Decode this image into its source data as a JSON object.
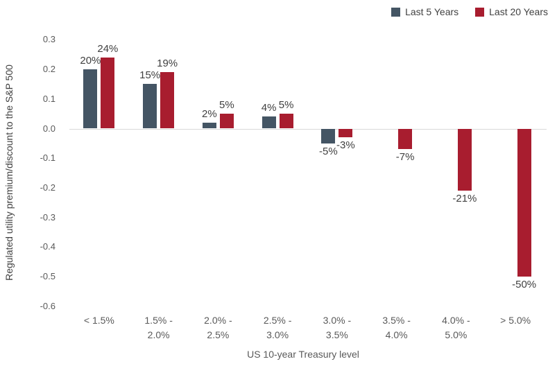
{
  "chart_data": {
    "type": "bar",
    "xlabel": "US 10-year Treasury level",
    "ylabel": "Regulated utility premium/discount to the S&P 500",
    "categories": [
      [
        "< 1.5%"
      ],
      [
        "1.5% -",
        "2.0%"
      ],
      [
        "2.0% -",
        "2.5%"
      ],
      [
        "2.5% -",
        "3.0%"
      ],
      [
        "3.0% -",
        "3.5%"
      ],
      [
        "3.5% -",
        "4.0%"
      ],
      [
        "4.0% -",
        "5.0%"
      ],
      [
        "> 5.0%"
      ]
    ],
    "series": [
      {
        "name": "Last 5 Years",
        "color": "#445564",
        "values": [
          0.2,
          0.15,
          0.02,
          0.04,
          -0.05,
          null,
          null,
          null
        ],
        "labels": [
          "20%",
          "15%",
          "2%",
          "4%",
          "-5%",
          null,
          null,
          null
        ]
      },
      {
        "name": "Last 20 Years",
        "color": "#A81D2F",
        "values": [
          0.24,
          0.19,
          0.05,
          0.05,
          -0.03,
          -0.07,
          -0.21,
          -0.5
        ],
        "labels": [
          "24%",
          "19%",
          "5%",
          "5%",
          "-3%",
          "-7%",
          "-21%",
          "-50%"
        ]
      }
    ],
    "yticks": [
      0.3,
      0.2,
      0.1,
      0.0,
      -0.1,
      -0.2,
      -0.3,
      -0.4,
      -0.5,
      -0.6
    ],
    "ylim": [
      -0.6,
      0.3
    ],
    "grid": false,
    "legend_position": "top-right",
    "axis_line_color": "#d9d9d9"
  }
}
